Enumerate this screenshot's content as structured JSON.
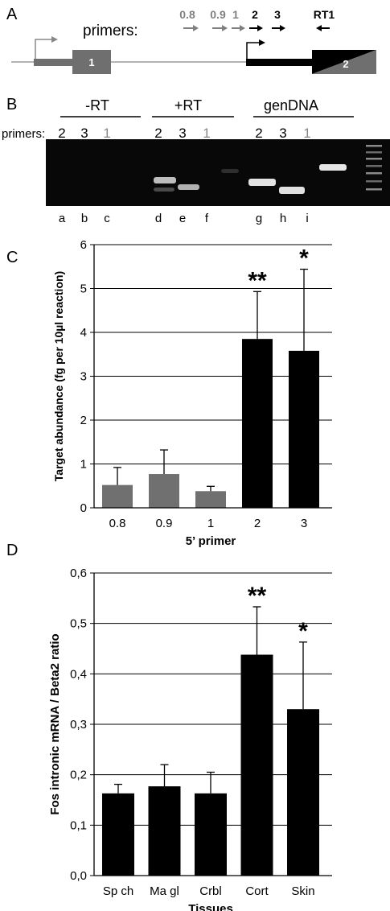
{
  "panel_a": {
    "letter": "A",
    "primers_label": "primers:",
    "primers": [
      {
        "name": "0.8",
        "dir": "forward",
        "color": "#7f7f7f"
      },
      {
        "name": "0.9",
        "dir": "forward",
        "color": "#7f7f7f"
      },
      {
        "name": "1",
        "dir": "forward",
        "color": "#7f7f7f"
      },
      {
        "name": "2",
        "dir": "forward",
        "color": "#000000"
      },
      {
        "name": "3",
        "dir": "forward",
        "color": "#000000"
      },
      {
        "name": "RT1",
        "dir": "reverse",
        "color": "#000000"
      }
    ],
    "exons": [
      {
        "name": "1",
        "color": "#6f6f6f"
      },
      {
        "name": "2",
        "color": "#000000"
      }
    ]
  },
  "panel_b": {
    "letter": "B",
    "groups": [
      "-RT",
      "+RT",
      "genDNA"
    ],
    "primers_label": "primers:",
    "lane_primers": [
      "2",
      "3",
      "1",
      "2",
      "3",
      "1",
      "2",
      "3",
      "1"
    ],
    "lane_letters": [
      "a",
      "b",
      "c",
      "d",
      "e",
      "f",
      "g",
      "h",
      "i"
    ],
    "primer_colors": {
      "2": "#000000",
      "3": "#000000",
      "1": "#888888"
    }
  },
  "chart_data": [
    {
      "panel": "C",
      "type": "bar",
      "categories": [
        "0.8",
        "0.9",
        "1",
        "2",
        "3"
      ],
      "values": [
        0.52,
        0.77,
        0.38,
        3.85,
        3.58
      ],
      "errors": [
        0.4,
        0.55,
        0.11,
        1.08,
        1.86
      ],
      "bar_colors": [
        "#707070",
        "#707070",
        "#707070",
        "#000000",
        "#000000"
      ],
      "annotations": [
        "",
        "",
        "",
        "**",
        "*"
      ],
      "xlabel": "5’ primer",
      "ylabel": "Target abundance (fg per 10µl reaction)",
      "ylim": [
        0,
        6
      ],
      "yticks": [
        "0",
        "1",
        "2",
        "3",
        "4",
        "5",
        "6"
      ],
      "grid": true
    },
    {
      "panel": "D",
      "type": "bar",
      "categories": [
        "Sp ch",
        "Ma gl",
        "Crbl",
        "Cort",
        "Skin"
      ],
      "values": [
        0.163,
        0.177,
        0.163,
        0.438,
        0.33
      ],
      "errors": [
        0.018,
        0.043,
        0.042,
        0.095,
        0.133
      ],
      "bar_colors": [
        "#000000",
        "#000000",
        "#000000",
        "#000000",
        "#000000"
      ],
      "annotations": [
        "",
        "",
        "",
        "**",
        "*"
      ],
      "xlabel": "Tissues",
      "ylabel": "Fos intronic mRNA / Beta2 ratio",
      "ylim": [
        0,
        0.6
      ],
      "yticks": [
        "0,0",
        "0,1",
        "0,2",
        "0,3",
        "0,4",
        "0,5",
        "0,6"
      ],
      "grid": true
    }
  ]
}
